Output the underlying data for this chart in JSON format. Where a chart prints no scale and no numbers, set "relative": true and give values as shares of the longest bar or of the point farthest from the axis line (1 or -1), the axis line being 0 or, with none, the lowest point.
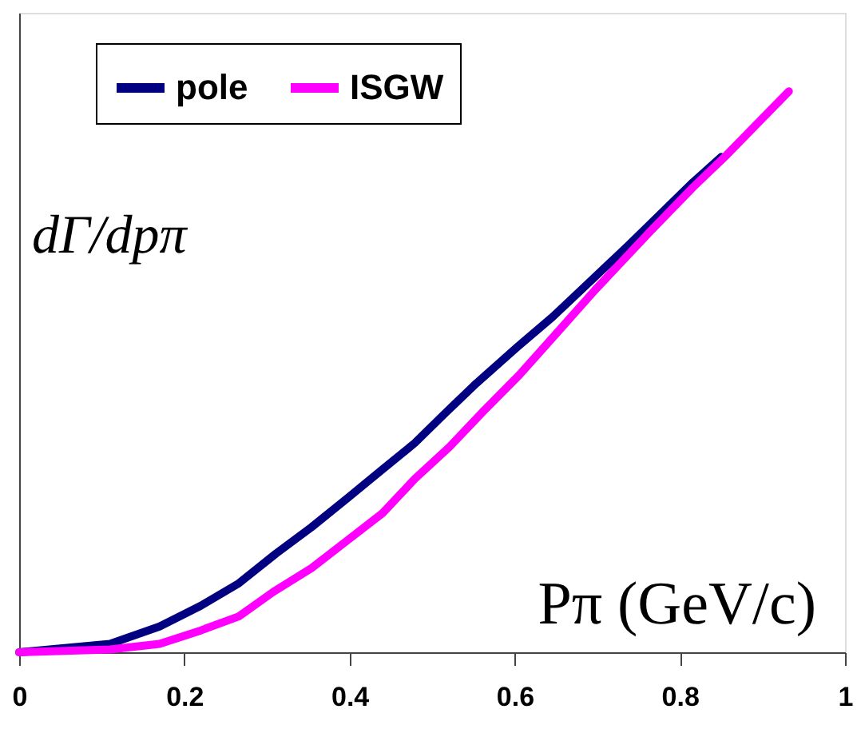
{
  "chart_data": {
    "type": "line",
    "relative": true,
    "xlabel": "Pπ (GeV/c)",
    "ylabel": "dΓ/dpπ",
    "xlim": [
      0,
      1
    ],
    "xticks": [
      0,
      0.2,
      0.4,
      0.6,
      0.8,
      1
    ],
    "tick_labels": "x",
    "grid": false,
    "legend": "top left",
    "marker": "none",
    "line_style": "solid",
    "series": [
      {
        "name": "pole",
        "color": "#000080",
        "x": [
          0,
          0.11,
          0.17,
          0.22,
          0.266,
          0.311,
          0.354,
          0.397,
          0.44,
          0.479,
          0.515,
          0.554,
          0.603,
          0.646,
          0.685,
          0.738,
          0.816,
          0.85
        ],
        "values": [
          0,
          0.015,
          0.046,
          0.083,
          0.123,
          0.176,
          0.223,
          0.274,
          0.326,
          0.373,
          0.425,
          0.48,
          0.544,
          0.598,
          0.652,
          0.726,
          0.838,
          0.883
        ]
      },
      {
        "name": "ISGW",
        "color": "#ff00ff",
        "x": [
          0,
          0.11,
          0.17,
          0.22,
          0.266,
          0.308,
          0.354,
          0.397,
          0.44,
          0.479,
          0.521,
          0.563,
          0.606,
          0.649,
          0.698,
          0.764,
          0.816,
          0.857,
          0.932
        ],
        "values": [
          0,
          0.005,
          0.015,
          0.039,
          0.064,
          0.108,
          0.15,
          0.199,
          0.248,
          0.309,
          0.366,
          0.431,
          0.495,
          0.566,
          0.647,
          0.75,
          0.829,
          0.887,
          1.0
        ]
      }
    ]
  }
}
